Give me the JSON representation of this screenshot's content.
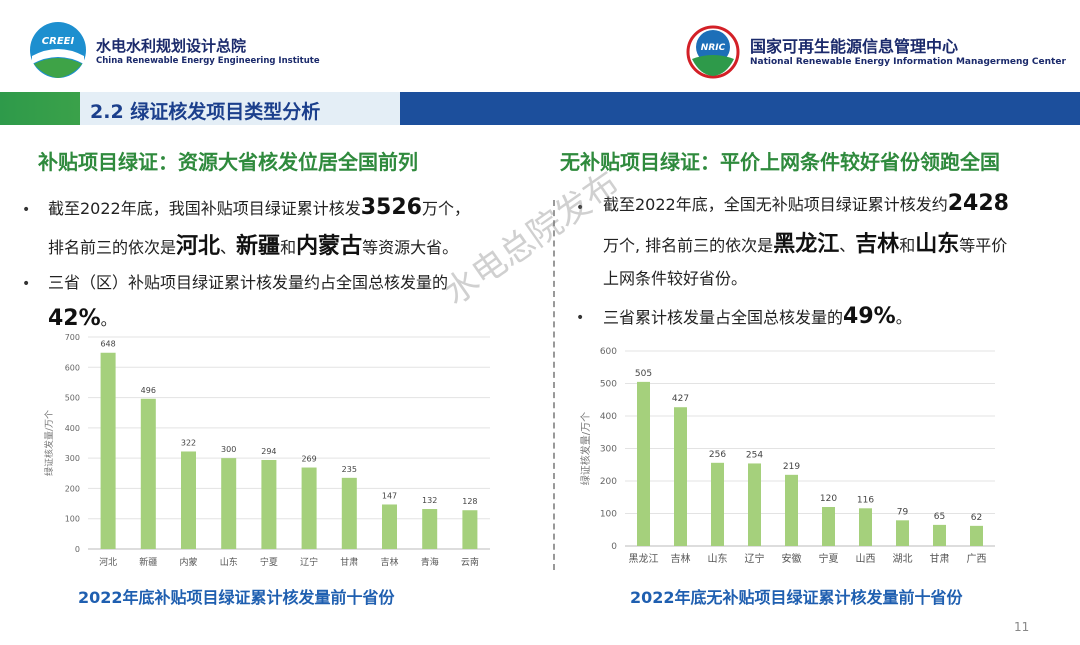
{
  "header": {
    "left_logo_text": "CREEI",
    "left_org_cn": "水电水利规划设计总院",
    "left_org_en": "China Renewable Energy Engineering Institute",
    "right_logo_text": "NRIC",
    "right_org_cn": "国家可再生能源信息管理中心",
    "right_org_en": "National Renewable Energy Information Managermeng Center"
  },
  "section": {
    "title": "2.2 绿证核发项目类型分析"
  },
  "left": {
    "headline": "补贴项目绿证：资源大省核发位居全国前列",
    "bullet1_a": "截至2022年底，我国补贴项目绿证累计核发",
    "bullet1_num": "3526",
    "bullet1_b": "万个，",
    "bullet1_c": "排名前三的依次是",
    "bullet1_p1": "河北",
    "bullet1_sep1": "、",
    "bullet1_p2": "新疆",
    "bullet1_and": "和",
    "bullet1_p3": "内蒙古",
    "bullet1_d": "等资源大省。",
    "bullet2_a": "三省（区）补贴项目绿证累计核发量约占全国总核发量的",
    "bullet2_pct": "42%",
    "bullet2_end": "。",
    "caption": "2022年底补贴项目绿证累计核发量前十省份"
  },
  "right": {
    "headline": "无补贴项目绿证：平价上网条件较好省份领跑全国",
    "bullet1_a": "截至2022年底，全国无补贴项目绿证累计核发约",
    "bullet1_num": "2428",
    "bullet1_b": "万个, 排名前三的依次是",
    "bullet1_p1": "黑龙江",
    "bullet1_sep1": "、",
    "bullet1_p2": "吉林",
    "bullet1_and": "和",
    "bullet1_p3": "山东",
    "bullet1_c": "等平价",
    "bullet1_d": "上网条件较好省份。",
    "bullet2_a": "三省累计核发量占全国总核发量的",
    "bullet2_pct": "49%",
    "bullet2_end": "。",
    "caption": "2022年底无补贴项目绿证累计核发量前十省份"
  },
  "watermark": "水电总院发布",
  "page_number": "11",
  "colors": {
    "bar": "#a5d07c",
    "green_text": "#2f8a3d",
    "blue_text": "#1f5fb0",
    "banner_blue": "#1c4f9c"
  },
  "chart_data": [
    {
      "type": "bar",
      "categories": [
        "河北",
        "新疆",
        "内蒙",
        "山东",
        "宁夏",
        "辽宁",
        "甘肃",
        "吉林",
        "青海",
        "云南"
      ],
      "values": [
        648,
        496,
        322,
        300,
        294,
        269,
        235,
        147,
        132,
        128
      ],
      "ylabel": "绿证核发量/万个",
      "ylim": [
        0,
        700
      ],
      "yticks": [
        0,
        100,
        200,
        300,
        400,
        500,
        600,
        700
      ],
      "grid": true
    },
    {
      "type": "bar",
      "categories": [
        "黑龙江",
        "吉林",
        "山东",
        "辽宁",
        "安徽",
        "宁夏",
        "山西",
        "湖北",
        "甘肃",
        "广西"
      ],
      "values": [
        505,
        427,
        256,
        254,
        219,
        120,
        116,
        79,
        65,
        62
      ],
      "ylabel": "绿证核发量/万个",
      "ylim": [
        0,
        600
      ],
      "yticks": [
        0,
        100,
        200,
        300,
        400,
        500,
        600
      ],
      "grid": true
    }
  ]
}
